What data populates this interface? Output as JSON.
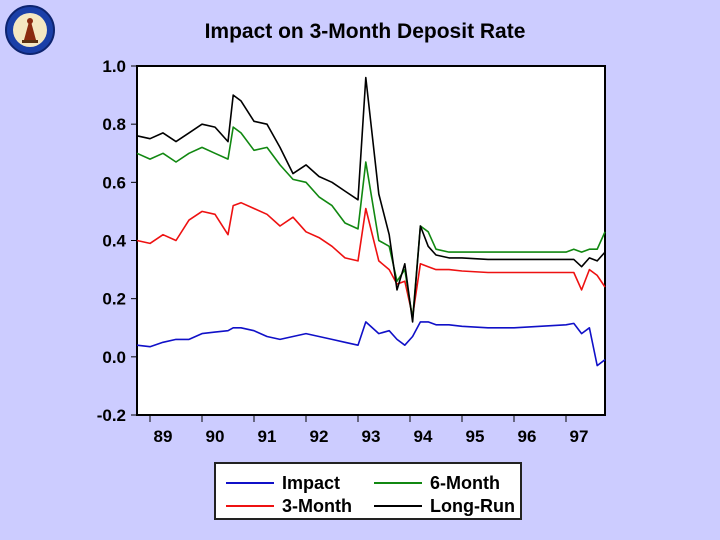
{
  "colors": {
    "Impact": "#1010c8",
    "3-Month": "#ee1111",
    "6-Month": "#118811",
    "Long-Run": "#000000",
    "background": "#ccccff"
  },
  "logo": {
    "icon": "seal-logo-icon"
  },
  "chart_data": {
    "type": "line",
    "title": "Impact on 3-Month Deposit Rate",
    "xlabel": "",
    "ylabel": "",
    "xlim": [
      1988.75,
      1997.75
    ],
    "ylim": [
      -0.2,
      1.0
    ],
    "yticks": [
      "1.0",
      "0.8",
      "0.6",
      "0.4",
      "0.2",
      "0.0",
      "-0.2"
    ],
    "yticks_values": [
      1.0,
      0.8,
      0.6,
      0.4,
      0.2,
      0.0,
      -0.2
    ],
    "xticks": [
      "89",
      "90",
      "91",
      "92",
      "93",
      "94",
      "95",
      "96",
      "97"
    ],
    "xticks_values": [
      1989.25,
      1990.25,
      1991.25,
      1992.25,
      1993.25,
      1994.25,
      1995.25,
      1996.25,
      1997.25
    ],
    "grid": false,
    "legend_position": "bottom",
    "x": [
      1988.75,
      1989.0,
      1989.25,
      1989.5,
      1989.75,
      1990.0,
      1990.25,
      1990.5,
      1990.6,
      1990.75,
      1991.0,
      1991.25,
      1991.5,
      1991.75,
      1992.0,
      1992.25,
      1992.5,
      1992.75,
      1993.0,
      1993.15,
      1993.4,
      1993.6,
      1993.75,
      1993.9,
      1994.05,
      1994.2,
      1994.35,
      1994.5,
      1994.75,
      1995.0,
      1995.5,
      1996.0,
      1996.5,
      1997.0,
      1997.15,
      1997.3,
      1997.45,
      1997.6,
      1997.75
    ],
    "series": [
      {
        "name": "Impact",
        "values": [
          0.04,
          0.035,
          0.05,
          0.06,
          0.06,
          0.08,
          0.085,
          0.09,
          0.1,
          0.1,
          0.09,
          0.07,
          0.06,
          0.07,
          0.08,
          0.07,
          0.06,
          0.05,
          0.04,
          0.12,
          0.08,
          0.09,
          0.06,
          0.04,
          0.07,
          0.12,
          0.12,
          0.11,
          0.11,
          0.105,
          0.1,
          0.1,
          0.105,
          0.11,
          0.115,
          0.08,
          0.1,
          -0.03,
          -0.01
        ]
      },
      {
        "name": "3-Month",
        "values": [
          0.4,
          0.39,
          0.42,
          0.4,
          0.47,
          0.5,
          0.49,
          0.42,
          0.52,
          0.53,
          0.51,
          0.49,
          0.45,
          0.48,
          0.43,
          0.41,
          0.38,
          0.34,
          0.33,
          0.51,
          0.33,
          0.3,
          0.25,
          0.26,
          0.14,
          0.32,
          0.31,
          0.3,
          0.3,
          0.295,
          0.29,
          0.29,
          0.29,
          0.29,
          0.29,
          0.23,
          0.3,
          0.28,
          0.24
        ]
      },
      {
        "name": "6-Month",
        "values": [
          0.7,
          0.68,
          0.7,
          0.67,
          0.7,
          0.72,
          0.7,
          0.68,
          0.79,
          0.77,
          0.71,
          0.72,
          0.66,
          0.61,
          0.6,
          0.55,
          0.52,
          0.46,
          0.44,
          0.67,
          0.4,
          0.38,
          0.26,
          0.3,
          0.13,
          0.45,
          0.43,
          0.37,
          0.36,
          0.36,
          0.36,
          0.36,
          0.36,
          0.36,
          0.37,
          0.36,
          0.37,
          0.37,
          0.43
        ]
      },
      {
        "name": "Long-Run",
        "values": [
          0.76,
          0.75,
          0.77,
          0.74,
          0.77,
          0.8,
          0.79,
          0.74,
          0.9,
          0.88,
          0.81,
          0.8,
          0.72,
          0.63,
          0.66,
          0.62,
          0.6,
          0.57,
          0.54,
          0.96,
          0.56,
          0.42,
          0.23,
          0.32,
          0.12,
          0.45,
          0.38,
          0.35,
          0.34,
          0.34,
          0.335,
          0.335,
          0.335,
          0.335,
          0.335,
          0.31,
          0.34,
          0.33,
          0.36
        ]
      }
    ]
  }
}
